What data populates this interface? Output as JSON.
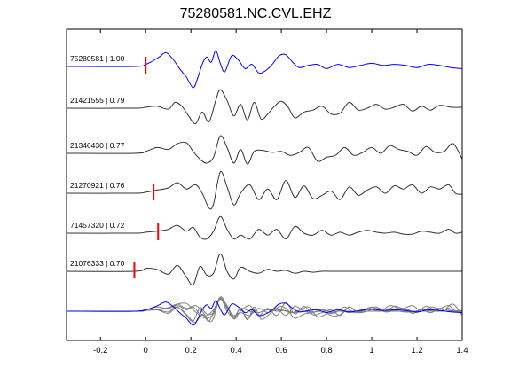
{
  "chart_data": {
    "type": "line",
    "title": "75280581.NC.CVL.EHZ",
    "xlabel": "",
    "ylabel": "",
    "xlim": [
      -0.35,
      1.4
    ],
    "x_ticks": [
      -0.2,
      0,
      0.2,
      0.4,
      0.6,
      0.8,
      1.0,
      1.2,
      1.4
    ],
    "x_tick_labels": [
      "-0.2",
      "0",
      "0.2",
      "0.4",
      "0.6",
      "0.8",
      "1",
      "1.2",
      "1.4"
    ],
    "grid": false,
    "colors": {
      "template": "#0000ff",
      "waveform": "#333333",
      "overlay": "#808080",
      "pick": "#ff0000"
    },
    "series": [
      {
        "name": "75280581 | 1.00",
        "pick": 0.0,
        "x": [
          -0.35,
          -0.05,
          0.0,
          0.03,
          0.06,
          0.09,
          0.12,
          0.15,
          0.18,
          0.21,
          0.23,
          0.25,
          0.27,
          0.29,
          0.31,
          0.33,
          0.35,
          0.38,
          0.41,
          0.44,
          0.47,
          0.5,
          0.53,
          0.56,
          0.59,
          0.62,
          0.65,
          0.68,
          0.72,
          0.76,
          0.8,
          0.85,
          0.9,
          0.95,
          1.0,
          1.05,
          1.1,
          1.15,
          1.2,
          1.25,
          1.3,
          1.35,
          1.4
        ],
        "y": [
          0,
          0,
          0.1,
          0.25,
          0.45,
          0.65,
          0.35,
          -0.1,
          -0.5,
          -1.0,
          -0.55,
          0.1,
          0.45,
          0.2,
          0.75,
          0.15,
          -0.25,
          0.5,
          0.3,
          -0.1,
          0.1,
          -0.3,
          -0.2,
          0.1,
          0.5,
          0.55,
          0.2,
          -0.05,
          0.05,
          0.1,
          -0.1,
          0.1,
          -0.05,
          0.05,
          0.15,
          0.05,
          0.1,
          0.05,
          -0.05,
          0.1,
          0.05,
          -0.05,
          -0.1
        ]
      },
      {
        "name": "21421555 | 0.79",
        "x": [
          -0.35,
          -0.05,
          0.0,
          0.05,
          0.1,
          0.13,
          0.16,
          0.19,
          0.22,
          0.25,
          0.28,
          0.31,
          0.33,
          0.36,
          0.39,
          0.42,
          0.45,
          0.48,
          0.51,
          0.54,
          0.57,
          0.6,
          0.63,
          0.66,
          0.7,
          0.74,
          0.78,
          0.82,
          0.86,
          0.9,
          0.94,
          0.98,
          1.02,
          1.06,
          1.1,
          1.14,
          1.18,
          1.22,
          1.26,
          1.3,
          1.35,
          1.4
        ],
        "y": [
          0,
          0,
          0.05,
          0.1,
          -0.05,
          0.3,
          0.1,
          -0.4,
          -0.8,
          -0.2,
          -0.7,
          0.4,
          0.95,
          0.4,
          -0.4,
          0.2,
          -0.6,
          0.3,
          -0.55,
          -0.3,
          0.1,
          0.35,
          0.05,
          -0.5,
          -0.2,
          -0.1,
          0.1,
          -0.3,
          -0.25,
          0.3,
          -0.1,
          0.0,
          0.2,
          -0.05,
          0.05,
          0.2,
          -0.15,
          0.1,
          -0.1,
          0.15,
          0.05,
          0.05
        ]
      },
      {
        "name": "21346430 | 0.77",
        "x": [
          -0.35,
          -0.05,
          0.0,
          0.05,
          0.1,
          0.14,
          0.18,
          0.21,
          0.24,
          0.27,
          0.3,
          0.33,
          0.36,
          0.39,
          0.42,
          0.45,
          0.48,
          0.52,
          0.56,
          0.6,
          0.64,
          0.68,
          0.72,
          0.76,
          0.8,
          0.84,
          0.88,
          0.92,
          0.96,
          1.0,
          1.04,
          1.08,
          1.12,
          1.16,
          1.2,
          1.24,
          1.28,
          1.32,
          1.36,
          1.4
        ],
        "y": [
          0,
          0,
          0.1,
          0.3,
          0.2,
          0.5,
          0.55,
          0.1,
          -0.3,
          -0.5,
          -0.2,
          0.9,
          0.3,
          -0.5,
          0.2,
          -0.55,
          0.1,
          0.15,
          0.05,
          0.1,
          -0.1,
          0.05,
          0.3,
          -0.4,
          -0.2,
          -0.1,
          0.3,
          -0.1,
          0.05,
          0.3,
          0.0,
          0.4,
          0.2,
          0.1,
          -0.1,
          0.35,
          0.05,
          0.1,
          0.5,
          -0.3
        ]
      },
      {
        "name": "21270921 | 0.76",
        "pick": 0.035,
        "x": [
          -0.35,
          -0.05,
          0.0,
          0.05,
          0.1,
          0.14,
          0.18,
          0.22,
          0.25,
          0.28,
          0.3,
          0.33,
          0.36,
          0.39,
          0.42,
          0.46,
          0.5,
          0.54,
          0.58,
          0.62,
          0.66,
          0.7,
          0.74,
          0.78,
          0.82,
          0.86,
          0.9,
          0.94,
          0.98,
          1.02,
          1.06,
          1.1,
          1.14,
          1.18,
          1.22,
          1.26,
          1.3,
          1.34,
          1.37,
          1.4
        ],
        "y": [
          0,
          0,
          0.05,
          0.15,
          0.25,
          0.5,
          0.2,
          0.4,
          0.0,
          -0.7,
          -0.5,
          1.0,
          0.3,
          -0.55,
          0.0,
          0.4,
          -0.3,
          0.2,
          -0.3,
          0.6,
          -0.2,
          0.35,
          -0.25,
          -0.1,
          0.1,
          -0.3,
          0.3,
          -0.1,
          0.15,
          0.3,
          0.0,
          0.35,
          0.2,
          0.4,
          0.0,
          0.3,
          0.2,
          0.4,
          0.0,
          -0.05
        ]
      },
      {
        "name": "71457320 | 0.72",
        "pick": 0.055,
        "x": [
          -0.35,
          -0.05,
          0.0,
          0.05,
          0.1,
          0.14,
          0.18,
          0.21,
          0.24,
          0.27,
          0.3,
          0.33,
          0.36,
          0.39,
          0.42,
          0.46,
          0.5,
          0.54,
          0.58,
          0.62,
          0.66,
          0.7,
          0.74,
          0.78,
          0.82,
          0.86,
          0.9,
          0.94,
          0.98,
          1.02,
          1.06,
          1.1,
          1.14,
          1.18,
          1.22,
          1.26,
          1.3,
          1.34,
          1.37,
          1.4
        ],
        "y": [
          0,
          0,
          0.05,
          0.1,
          0.2,
          0.4,
          0.1,
          0.3,
          -0.2,
          -0.3,
          0.1,
          0.85,
          0.2,
          -0.3,
          -0.1,
          -0.3,
          0.2,
          -0.1,
          0.2,
          -0.3,
          0.35,
          0.0,
          -0.1,
          0.15,
          -0.1,
          0.05,
          -0.1,
          0.05,
          0.15,
          0.05,
          0.0,
          0.05,
          -0.05,
          -0.05,
          0.1,
          0.05,
          0.0,
          0.2,
          0.0,
          0.05
        ]
      },
      {
        "name": "21076333 | 0.70",
        "pick": -0.05,
        "x": [
          -0.35,
          -0.05,
          0.0,
          0.05,
          0.1,
          0.14,
          0.18,
          0.21,
          0.24,
          0.27,
          0.3,
          0.33,
          0.36,
          0.39,
          0.42,
          0.46,
          0.5,
          0.54,
          0.58,
          0.62,
          0.66,
          0.7,
          0.74,
          0.78,
          0.82,
          0.86,
          0.9,
          0.94,
          0.98,
          1.02,
          1.06,
          1.1,
          1.14,
          1.18,
          1.22,
          1.26,
          1.3,
          1.34,
          1.37,
          1.4
        ],
        "y": [
          0,
          0,
          0.15,
          0.1,
          -0.15,
          0.3,
          -0.3,
          -0.7,
          0.25,
          -0.2,
          -0.1,
          0.9,
          0.0,
          -0.4,
          0.2,
          0.0,
          -0.1,
          0.1,
          0.0,
          0.05,
          -0.1,
          0.0,
          -0.05,
          0.0,
          0.0,
          0.0,
          0.0,
          0.0,
          0.0,
          0.0,
          0.0,
          0.0,
          0.0,
          0.0,
          0.0,
          0.0,
          0.0,
          0.0,
          0.0,
          0.0
        ]
      }
    ]
  }
}
